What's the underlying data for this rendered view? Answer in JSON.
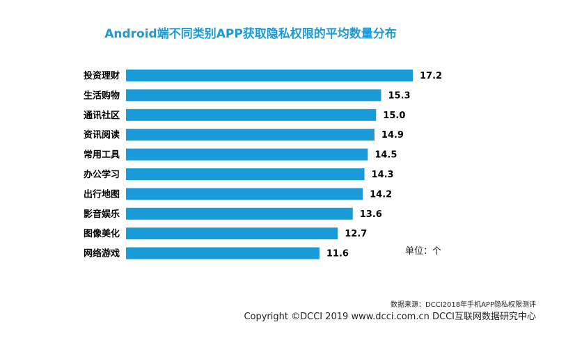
{
  "chart_data": {
    "type": "bar",
    "orientation": "horizontal",
    "title": "Android端不同类别APP获取隐私权限的平均数量分布",
    "categories": [
      "投资理财",
      "生活购物",
      "通讯社区",
      "资讯阅读",
      "常用工具",
      "办公学习",
      "出行地图",
      "影音娱乐",
      "图像美化",
      "网络游戏"
    ],
    "values": [
      17.2,
      15.3,
      15.0,
      14.9,
      14.5,
      14.3,
      14.2,
      13.6,
      12.7,
      11.6
    ],
    "value_labels": [
      "17.2",
      "15.3",
      "15.0",
      "14.9",
      "14.5",
      "14.3",
      "14.2",
      "13.6",
      "12.7",
      "11.6"
    ],
    "bar_color": "#1a9bd7",
    "unit": "单位：个",
    "xlim": [
      0,
      17.2
    ],
    "grid": false,
    "legend": "none"
  },
  "footer": {
    "source": "数据来源：DCCI2018年手机APP隐私权限测评",
    "copyright": "Copyright ©DCCI 2019  www.dcci.com.cn   DCCI互联网数据研究中心"
  }
}
